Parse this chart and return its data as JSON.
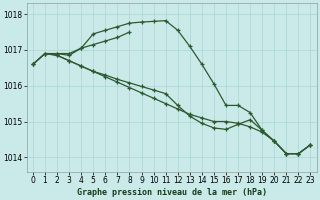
{
  "title": "Graphe pression niveau de la mer (hPa)",
  "bg_color": "#caeaea",
  "grid_color": "#b0d8d8",
  "line_color": "#2d5a2d",
  "xlim": [
    -0.5,
    23.5
  ],
  "ylim": [
    1013.6,
    1018.3
  ],
  "yticks": [
    1014,
    1015,
    1016,
    1017,
    1018
  ],
  "xticks": [
    0,
    1,
    2,
    3,
    4,
    5,
    6,
    7,
    8,
    9,
    10,
    11,
    12,
    13,
    14,
    15,
    16,
    17,
    18,
    19,
    20,
    21,
    22,
    23
  ],
  "line1_x": [
    0,
    1,
    2,
    3,
    4,
    5,
    6,
    7,
    8,
    9,
    10,
    11,
    12,
    13,
    14,
    15,
    16,
    17,
    18,
    19,
    20,
    21,
    22,
    23
  ],
  "line1_y": [
    1016.6,
    1016.9,
    1016.9,
    1016.85,
    1017.05,
    1017.45,
    1017.55,
    1017.65,
    1017.75,
    1017.78,
    1017.8,
    1017.82,
    1017.55,
    1017.1,
    1016.6,
    1016.05,
    1015.45,
    1015.45,
    1015.25,
    1014.75,
    1014.45,
    1014.1,
    1014.1,
    1014.35
  ],
  "line2_x": [
    0,
    1,
    2,
    3,
    4,
    5,
    6,
    7,
    8,
    9,
    10,
    11,
    12,
    13,
    14,
    15,
    16,
    17,
    18,
    19,
    20,
    21,
    22,
    23
  ],
  "line2_y": [
    1016.6,
    1016.9,
    1016.85,
    1016.7,
    1016.55,
    1016.4,
    1016.25,
    1016.1,
    1015.95,
    1015.8,
    1015.65,
    1015.5,
    1015.35,
    1015.2,
    1015.1,
    1015.0,
    1015.0,
    1014.95,
    1014.85,
    1014.7,
    1014.45,
    1014.1,
    1014.1,
    1014.35
  ],
  "line3_x": [
    0,
    1,
    2,
    3,
    4,
    5,
    6,
    7,
    8,
    9,
    10,
    11,
    12,
    13,
    14,
    15,
    16,
    17,
    18,
    19,
    20,
    21,
    22,
    23
  ],
  "line3_y": [
    1016.6,
    1016.9,
    1016.85,
    1016.7,
    1016.55,
    1016.4,
    1016.3,
    1016.18,
    1016.08,
    1015.98,
    1015.88,
    1015.78,
    1015.45,
    1015.15,
    1014.95,
    1014.82,
    1014.78,
    1014.92,
    1015.05,
    1014.75,
    1014.45,
    1014.1,
    1014.1,
    1014.35
  ],
  "line4_x": [
    2,
    3,
    4,
    5,
    6,
    7,
    8
  ],
  "line4_y": [
    1016.9,
    1016.9,
    1017.05,
    1017.15,
    1017.25,
    1017.35,
    1017.5
  ]
}
